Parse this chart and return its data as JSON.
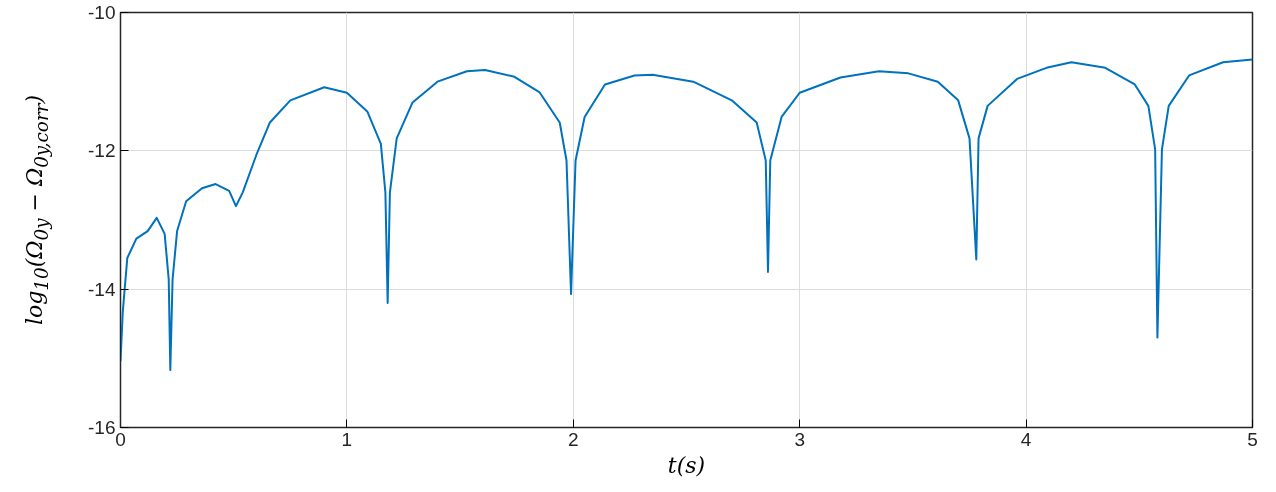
{
  "chart_data": {
    "type": "line",
    "xlabel": "t(s)",
    "ylabel": "log$_{10}$(Ω$_{0y}$ − Ω$_{0y,corr}$)",
    "xlim": [
      0,
      5
    ],
    "ylim": [
      -16,
      -10
    ],
    "xticks": [
      0,
      1,
      2,
      3,
      4,
      5
    ],
    "yticks": [
      -16,
      -14,
      -12,
      -10
    ],
    "grid": true,
    "line_style": "solid",
    "series": [
      {
        "color": "#0072bd",
        "x": [
          0,
          0.01,
          0.03,
          0.07,
          0.12,
          0.16,
          0.195,
          0.213,
          0.22,
          0.23,
          0.25,
          0.29,
          0.36,
          0.42,
          0.48,
          0.51,
          0.54,
          0.6,
          0.66,
          0.75,
          0.9,
          1.0,
          1.09,
          1.15,
          1.17,
          1.18,
          1.19,
          1.22,
          1.29,
          1.4,
          1.53,
          1.61,
          1.74,
          1.85,
          1.94,
          1.97,
          1.99,
          2.01,
          2.05,
          2.14,
          2.27,
          2.35,
          2.53,
          2.7,
          2.81,
          2.85,
          2.86,
          2.87,
          2.92,
          3.0,
          3.18,
          3.35,
          3.48,
          3.61,
          3.7,
          3.75,
          3.78,
          3.79,
          3.83,
          3.96,
          4.09,
          4.2,
          4.35,
          4.48,
          4.54,
          4.57,
          4.58,
          4.6,
          4.63,
          4.72,
          4.87,
          5.0
        ],
        "values": [
          -15.04,
          -14.33,
          -13.55,
          -13.27,
          -13.16,
          -12.97,
          -13.2,
          -13.86,
          -15.17,
          -13.86,
          -13.16,
          -12.73,
          -12.54,
          -12.48,
          -12.58,
          -12.8,
          -12.6,
          -12.06,
          -11.59,
          -11.27,
          -11.08,
          -11.16,
          -11.43,
          -11.9,
          -12.6,
          -14.2,
          -12.6,
          -11.82,
          -11.3,
          -11.0,
          -10.85,
          -10.83,
          -10.93,
          -11.15,
          -11.59,
          -12.14,
          -14.07,
          -12.14,
          -11.51,
          -11.04,
          -10.91,
          -10.9,
          -11.0,
          -11.27,
          -11.59,
          -12.14,
          -13.75,
          -12.14,
          -11.51,
          -11.16,
          -10.94,
          -10.85,
          -10.88,
          -11.0,
          -11.27,
          -11.82,
          -13.57,
          -11.82,
          -11.35,
          -10.96,
          -10.8,
          -10.72,
          -10.8,
          -11.04,
          -11.35,
          -11.98,
          -14.7,
          -11.98,
          -11.35,
          -10.91,
          -10.72,
          -10.68
        ]
      }
    ]
  }
}
